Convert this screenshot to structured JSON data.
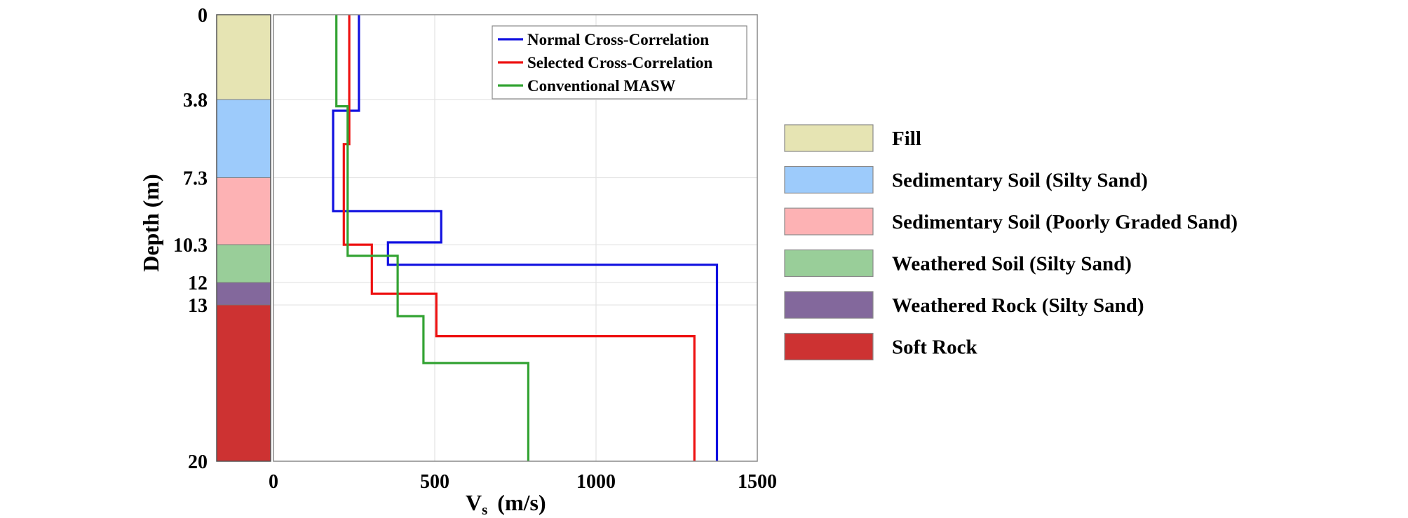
{
  "chart_data": {
    "type": "line",
    "title": "",
    "xlabel_main": "V",
    "xlabel_sub": "s",
    "xlabel_unit": "(m/s)",
    "ylabel": "Depth (m)",
    "xlim": [
      0,
      1500
    ],
    "ylim": [
      0,
      20
    ],
    "y_inverted": true,
    "grid": true,
    "x_ticks": [
      0,
      500,
      1000,
      1500
    ],
    "x_tick_labels": [
      "0",
      "500",
      "1000",
      "1500"
    ],
    "y_ticks": [
      0,
      3.8,
      7.3,
      10.3,
      12,
      13,
      20
    ],
    "y_tick_labels": [
      "0",
      "3.8",
      "7.3",
      "10.3",
      "12",
      "13",
      "20"
    ],
    "legend_placement": "top-right",
    "series": [
      {
        "name": "Normal Cross-Correlation",
        "color": "#1010e0",
        "depth": [
          0,
          4.3,
          4.3,
          8.8,
          8.8,
          10.2,
          10.2,
          11.2,
          11.2,
          20
        ],
        "vs": [
          265,
          265,
          185,
          185,
          520,
          520,
          355,
          355,
          1375,
          1375
        ]
      },
      {
        "name": "Selected Cross-Correlation",
        "color": "#ee1111",
        "depth": [
          0,
          5.8,
          5.8,
          10.3,
          10.3,
          12.5,
          12.5,
          14.4,
          14.4,
          20
        ],
        "vs": [
          235,
          235,
          218,
          218,
          305,
          305,
          505,
          505,
          1305,
          1305
        ]
      },
      {
        "name": "Conventional MASW",
        "color": "#33a333",
        "depth": [
          0,
          4.1,
          4.1,
          10.8,
          10.8,
          13.5,
          13.5,
          15.6,
          15.6,
          20
        ],
        "vs": [
          195,
          195,
          230,
          230,
          385,
          385,
          465,
          465,
          790,
          790
        ]
      }
    ],
    "soil_layers": [
      {
        "name": "Fill",
        "top": 0,
        "bottom": 3.8,
        "color": "#e6e4b3"
      },
      {
        "name": "Sedimentary Soil (Silty Sand)",
        "top": 3.8,
        "bottom": 7.3,
        "color": "#9dcbfb"
      },
      {
        "name": "Sedimentary Soil (Poorly Graded Sand)",
        "top": 7.3,
        "bottom": 10.3,
        "color": "#fdb2b4"
      },
      {
        "name": "Weathered Soil (Silty Sand)",
        "top": 10.3,
        "bottom": 12,
        "color": "#99ce99"
      },
      {
        "name": "Weathered Rock (Silty Sand)",
        "top": 12,
        "bottom": 13,
        "color": "#83689c"
      },
      {
        "name": "Soft Rock",
        "top": 13,
        "bottom": 20,
        "color": "#cd3232"
      }
    ]
  }
}
